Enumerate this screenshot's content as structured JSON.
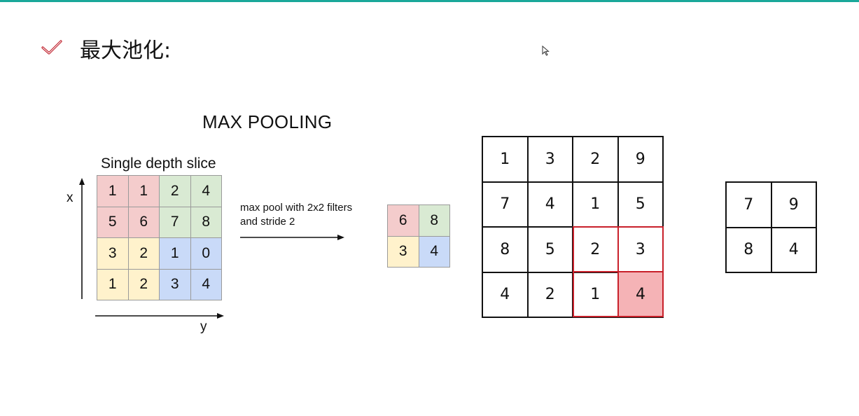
{
  "header": {
    "title": "最大池化:"
  },
  "icons": {
    "check": "check-icon",
    "cursor": "cursor-icon"
  },
  "colors": {
    "accent": "#1aa89a",
    "check": "#c0202c",
    "highlight": "#c8202a",
    "highlight_fill": "#f5b3b6",
    "red": "#f4cccc",
    "green": "#d9ead3",
    "yellow": "#fff2cc",
    "blue": "#c9daf8"
  },
  "left_figure": {
    "title": "MAX POOLING",
    "slice_label": "Single depth slice",
    "x_label": "x",
    "y_label": "y",
    "operation": {
      "line1": "max pool with 2x2 filters",
      "line2": "and stride 2"
    },
    "input_grid": [
      [
        "1",
        "1",
        "2",
        "4"
      ],
      [
        "5",
        "6",
        "7",
        "8"
      ],
      [
        "3",
        "2",
        "1",
        "0"
      ],
      [
        "1",
        "2",
        "3",
        "4"
      ]
    ],
    "output_grid": [
      [
        "6",
        "8"
      ],
      [
        "3",
        "4"
      ]
    ]
  },
  "right_figure": {
    "input_grid": [
      [
        "1",
        "3",
        "2",
        "9"
      ],
      [
        "7",
        "4",
        "1",
        "5"
      ],
      [
        "8",
        "5",
        "2",
        "3"
      ],
      [
        "4",
        "2",
        "1",
        "4"
      ]
    ],
    "output_grid": [
      [
        "7",
        "9"
      ],
      [
        "8",
        "4"
      ]
    ]
  }
}
